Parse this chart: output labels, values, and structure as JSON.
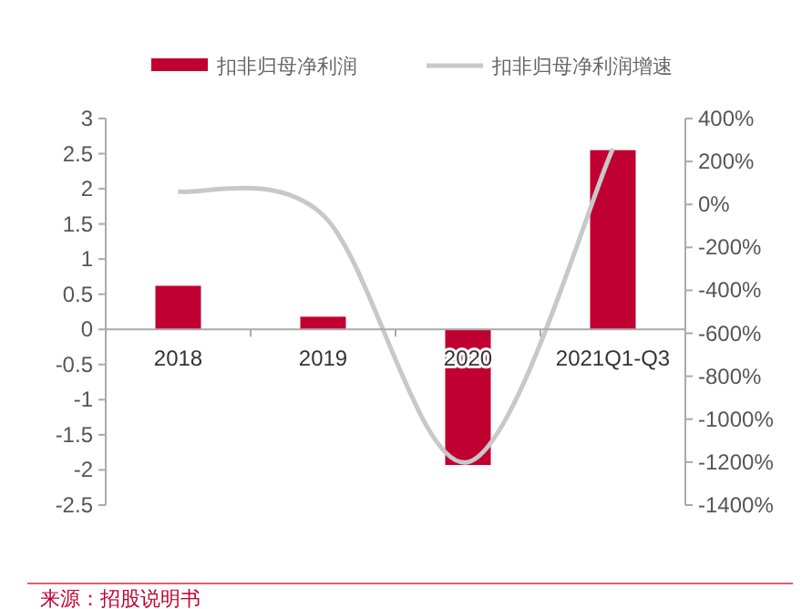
{
  "chart_data": {
    "type": "bar",
    "categories": [
      "2018",
      "2019",
      "2020",
      "2021Q1-Q3"
    ],
    "series": [
      {
        "name": "扣非归母净利润",
        "color": "#c00030",
        "values": [
          0.62,
          0.18,
          -1.93,
          2.55
        ]
      },
      {
        "name": "扣非归母净利润增速",
        "type": "line",
        "axis": "y2",
        "color": "#c8c8c8",
        "values": [
          60,
          -50,
          -1200,
          260
        ]
      }
    ],
    "ylim": [
      -2.5,
      3
    ],
    "yticks": [
      -2.5,
      -2,
      -1.5,
      -1,
      -0.5,
      0,
      0.5,
      1,
      1.5,
      2,
      2.5,
      3
    ],
    "y2lim": [
      -1400,
      400
    ],
    "y2ticks": [
      {
        "value": -1400,
        "label": "-1400%"
      },
      {
        "value": -1200,
        "label": "-1200%"
      },
      {
        "value": -1000,
        "label": "-1000%"
      },
      {
        "value": -800,
        "label": "-800%"
      },
      {
        "value": -600,
        "label": "-600%"
      },
      {
        "value": -400,
        "label": "-400%"
      },
      {
        "value": -200,
        "label": "-200%"
      },
      {
        "value": 0,
        "label": "0%"
      },
      {
        "value": 200,
        "label": "200%"
      },
      {
        "value": 400,
        "label": "400%"
      }
    ],
    "legend": "top",
    "grid": false,
    "marker": "none",
    "annotations": [
      "来源：招股说明书"
    ]
  }
}
